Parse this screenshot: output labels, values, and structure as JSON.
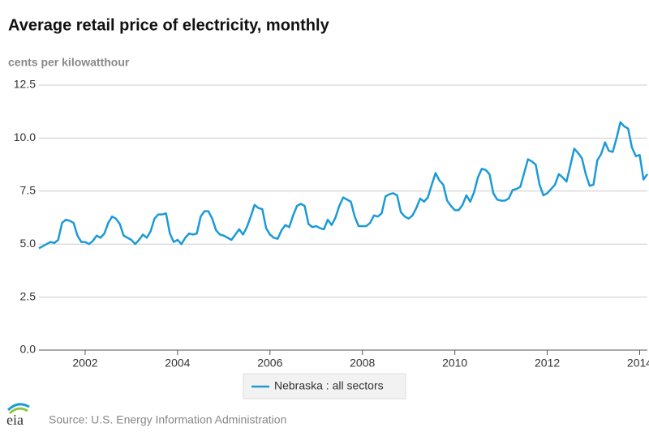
{
  "chart_data": {
    "type": "line",
    "title": "Average retail price of electricity, monthly",
    "y_label": "cents per kilowatthour",
    "source": "Source: U.S. Energy Information Administration",
    "logo": "eia",
    "x": [
      2001,
      2001.0833,
      2001.1667,
      2001.25,
      2001.3333,
      2001.4167,
      2001.5,
      2001.5833,
      2001.6667,
      2001.75,
      2001.8333,
      2001.9167,
      2002,
      2002.0833,
      2002.1667,
      2002.25,
      2002.3333,
      2002.4167,
      2002.5,
      2002.5833,
      2002.6667,
      2002.75,
      2002.8333,
      2002.9167,
      2003,
      2003.0833,
      2003.1667,
      2003.25,
      2003.3333,
      2003.4167,
      2003.5,
      2003.5833,
      2003.6667,
      2003.75,
      2003.8333,
      2003.9167,
      2004,
      2004.0833,
      2004.1667,
      2004.25,
      2004.3333,
      2004.4167,
      2004.5,
      2004.5833,
      2004.6667,
      2004.75,
      2004.8333,
      2004.9167,
      2005,
      2005.0833,
      2005.1667,
      2005.25,
      2005.3333,
      2005.4167,
      2005.5,
      2005.5833,
      2005.6667,
      2005.75,
      2005.8333,
      2005.9167,
      2006,
      2006.0833,
      2006.1667,
      2006.25,
      2006.3333,
      2006.4167,
      2006.5,
      2006.5833,
      2006.6667,
      2006.75,
      2006.8333,
      2006.9167,
      2007,
      2007.0833,
      2007.1667,
      2007.25,
      2007.3333,
      2007.4167,
      2007.5,
      2007.5833,
      2007.6667,
      2007.75,
      2007.8333,
      2007.9167,
      2008,
      2008.0833,
      2008.1667,
      2008.25,
      2008.3333,
      2008.4167,
      2008.5,
      2008.5833,
      2008.6667,
      2008.75,
      2008.8333,
      2008.9167,
      2009,
      2009.0833,
      2009.1667,
      2009.25,
      2009.3333,
      2009.4167,
      2009.5,
      2009.5833,
      2009.6667,
      2009.75,
      2009.8333,
      2009.9167,
      2010,
      2010.0833,
      2010.1667,
      2010.25,
      2010.3333,
      2010.4167,
      2010.5,
      2010.5833,
      2010.6667,
      2010.75,
      2010.8333,
      2010.9167,
      2011,
      2011.0833,
      2011.1667,
      2011.25,
      2011.3333,
      2011.4167,
      2011.5,
      2011.5833,
      2011.6667,
      2011.75,
      2011.8333,
      2011.9167,
      2012,
      2012.0833,
      2012.1667,
      2012.25,
      2012.3333,
      2012.4167,
      2012.5,
      2012.5833,
      2012.6667,
      2012.75,
      2012.8333,
      2012.9167,
      2013,
      2013.0833,
      2013.1667,
      2013.25,
      2013.3333,
      2013.4167,
      2013.5,
      2013.5833,
      2013.6667,
      2013.75,
      2013.8333,
      2013.9167,
      2014,
      2014.0833,
      2014.1667
    ],
    "series": [
      {
        "name": "Nebraska : all sectors",
        "color": "#1c9ad6",
        "values": [
          4.8,
          4.9,
          5.0,
          5.1,
          5.05,
          5.2,
          6.0,
          6.15,
          6.1,
          6.0,
          5.4,
          5.1,
          5.1,
          5.0,
          5.15,
          5.4,
          5.3,
          5.5,
          6.0,
          6.3,
          6.2,
          5.95,
          5.4,
          5.3,
          5.2,
          5.0,
          5.2,
          5.45,
          5.3,
          5.6,
          6.2,
          6.4,
          6.4,
          6.45,
          5.5,
          5.1,
          5.2,
          5.0,
          5.3,
          5.5,
          5.45,
          5.5,
          6.3,
          6.55,
          6.55,
          6.2,
          5.65,
          5.45,
          5.4,
          5.3,
          5.2,
          5.45,
          5.7,
          5.45,
          5.8,
          6.3,
          6.85,
          6.7,
          6.65,
          5.75,
          5.45,
          5.3,
          5.25,
          5.65,
          5.9,
          5.8,
          6.35,
          6.8,
          6.9,
          6.8,
          5.95,
          5.8,
          5.85,
          5.75,
          5.7,
          6.15,
          5.9,
          6.25,
          6.8,
          7.2,
          7.1,
          7.0,
          6.3,
          5.85,
          5.85,
          5.85,
          6.0,
          6.35,
          6.3,
          6.45,
          7.25,
          7.35,
          7.4,
          7.3,
          6.5,
          6.3,
          6.2,
          6.35,
          6.7,
          7.15,
          7.0,
          7.2,
          7.8,
          8.35,
          8.0,
          7.8,
          7.05,
          6.8,
          6.6,
          6.6,
          6.85,
          7.3,
          7.0,
          7.45,
          8.15,
          8.55,
          8.5,
          8.3,
          7.4,
          7.1,
          7.05,
          7.05,
          7.15,
          7.55,
          7.6,
          7.7,
          8.35,
          9.0,
          8.9,
          8.75,
          7.8,
          7.3,
          7.4,
          7.6,
          7.8,
          8.3,
          8.15,
          7.95,
          8.7,
          9.5,
          9.3,
          9.05,
          8.3,
          7.75,
          7.8,
          8.95,
          9.25,
          9.8,
          9.4,
          9.35,
          10.0,
          10.75,
          10.55,
          10.45,
          9.55,
          9.15,
          9.2,
          8.05,
          8.3
        ]
      }
    ],
    "xlim": [
      2001,
      2014.1667
    ],
    "xticks": [
      2002,
      2004,
      2006,
      2008,
      2010,
      2012,
      2014
    ],
    "ylim": [
      0,
      12.5
    ],
    "yticks": [
      {
        "value": 0,
        "label": "0.0"
      },
      2.5,
      {
        "value": 5,
        "label": "5.0"
      },
      7.5,
      {
        "value": 10,
        "label": "10.0"
      },
      12.5
    ],
    "grid": true
  }
}
